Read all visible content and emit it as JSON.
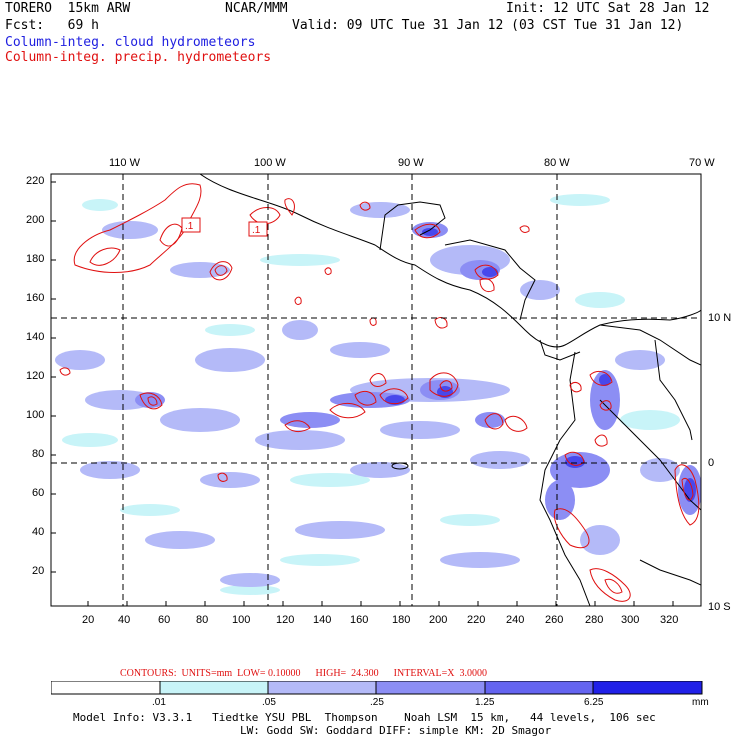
{
  "header": {
    "model": "TORERO  15km ARW",
    "center": "NCAR/MMM",
    "init": "Init: 12 UTC Sat 28 Jan 12",
    "fcst": "Fcst:   69 h",
    "valid": "Valid: 09 UTC Tue 31 Jan 12 (03 CST Tue 31 Jan 12)",
    "field1": "Column-integ. cloud hydrometeors",
    "field2": "Column-integ. precip. hydrometeors"
  },
  "colors": {
    "cloud": "#2020e0",
    "precip": "#e01010",
    "levels": [
      "#ffffff",
      "#c8f4f8",
      "#b4baf8",
      "#8c8ef4",
      "#6464f0",
      "#3c3cec",
      "#1818e8"
    ]
  },
  "map": {
    "lon_labels": [
      "110 W",
      "100 W",
      "90 W",
      "80 W",
      "70 W"
    ],
    "lat_labels": [
      "10 N",
      "0",
      "10 S"
    ],
    "x_ticks": [
      "20",
      "40",
      "60",
      "80",
      "100",
      "120",
      "140",
      "160",
      "180",
      "200",
      "220",
      "240",
      "260",
      "280",
      "300",
      "320"
    ],
    "y_ticks": [
      "220",
      "200",
      "180",
      "160",
      "140",
      "120",
      "100",
      "80",
      "60",
      "40",
      "20"
    ],
    "contour_label_1": ".1",
    "contour_label_2": ".1"
  },
  "contours_line": "CONTOURS:  UNITS=mm  LOW= 0.10000      HIGH=  24.300      INTERVAL=X  3.0000",
  "colorbar": {
    "labels": [
      ".01",
      ".05",
      ".25",
      "1.25",
      "6.25"
    ],
    "unit": "mm"
  },
  "footer": {
    "line1": "Model Info: V3.3.1   Tiedtke YSU PBL  Thompson    Noah LSM  15 km,   44 levels,  106 sec",
    "line2": "LW: Godd SW: Goddard DIFF: simple KM: 2D Smagor"
  }
}
